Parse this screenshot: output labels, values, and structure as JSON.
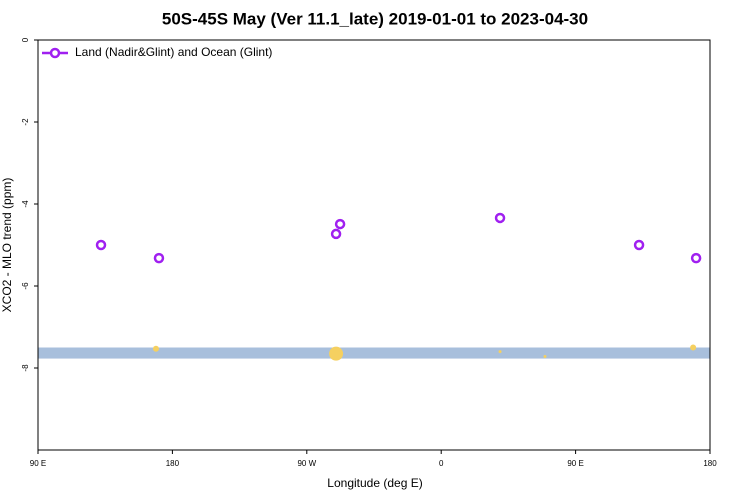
{
  "chart_data": {
    "type": "scatter",
    "title": "50S-45S May (Ver 11.1_late)   2019-01-01 to 2023-04-30",
    "x_label": "Longitude (deg E)",
    "y_label": "XCO2 - MLO trend (ppm)",
    "xlim": [
      90,
      540
    ],
    "xticks": [
      {
        "value": 90,
        "label": "90 E"
      },
      {
        "value": 180,
        "label": "180"
      },
      {
        "value": 270,
        "label": "90 W"
      },
      {
        "value": 360,
        "label": "0"
      },
      {
        "value": 450,
        "label": "90 E"
      },
      {
        "value": 540,
        "label": "180"
      }
    ],
    "ylim": [
      -10,
      0
    ],
    "yticks": [
      0,
      -2,
      -4,
      -6,
      -8
    ],
    "legend": "top-left",
    "series": [
      {
        "name": "Land (Nadir&Glint) and Ocean (Glint)",
        "color": "#a020f0",
        "x": [
          132.2,
          171,
          289.6,
          292.3,
          399.4,
          492.5,
          530.7
        ],
        "values": [
          -5.0,
          -5.32,
          -4.73,
          -4.49,
          -4.34,
          -5.0,
          -5.32
        ]
      }
    ],
    "band": {
      "color": "#a8bfdc",
      "range": [
        -7.77,
        -7.5
      ]
    },
    "highlights": {
      "color": "#f5d060",
      "x": [
        169,
        289.6,
        399.4,
        429.5,
        528.7
      ],
      "values": [
        -7.53,
        -7.65,
        -7.6,
        -7.72,
        -7.5
      ],
      "sizes": [
        3,
        7,
        1.5,
        1.5,
        3
      ]
    }
  }
}
